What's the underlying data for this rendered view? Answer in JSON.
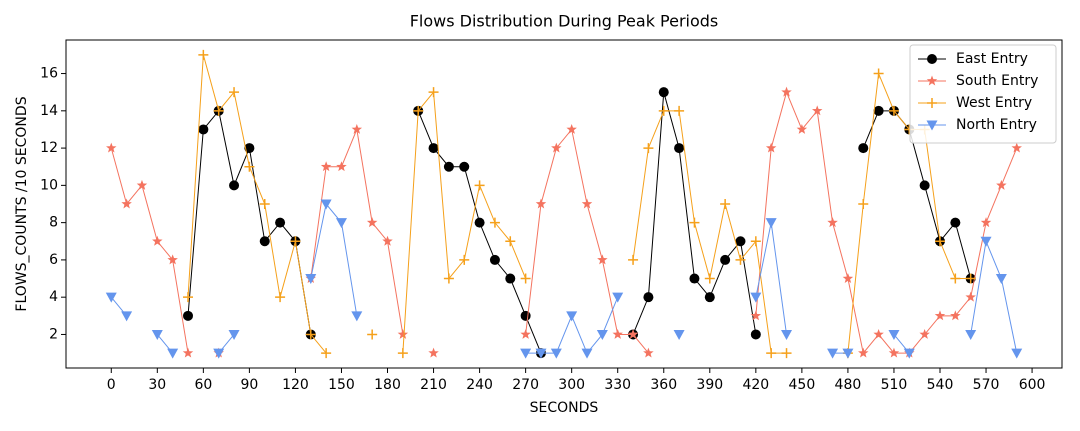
{
  "chart_data": {
    "type": "line",
    "title": "Flows Distribution During Peak Periods",
    "x_label": "SECONDS",
    "y_label": "FLOWS_COUNTS /10 SECONDS",
    "x": [
      0,
      10,
      20,
      30,
      40,
      50,
      60,
      70,
      80,
      90,
      100,
      110,
      120,
      130,
      140,
      150,
      160,
      170,
      180,
      190,
      200,
      210,
      220,
      230,
      240,
      250,
      260,
      270,
      280,
      290,
      300,
      310,
      320,
      330,
      340,
      350,
      360,
      370,
      380,
      390,
      400,
      410,
      420,
      430,
      440,
      450,
      460,
      470,
      480,
      490,
      500,
      510,
      520,
      530,
      540,
      550,
      560,
      570,
      580,
      590
    ],
    "series": [
      {
        "name": "East Entry",
        "color": "#000000",
        "marker": "circle",
        "values": [
          null,
          null,
          null,
          null,
          null,
          3,
          13,
          14,
          10,
          12,
          7,
          8,
          7,
          2,
          null,
          null,
          null,
          null,
          null,
          null,
          14,
          12,
          11,
          11,
          8,
          6,
          5,
          3,
          1,
          null,
          null,
          null,
          null,
          null,
          2,
          4,
          15,
          12,
          5,
          4,
          6,
          7,
          2,
          null,
          null,
          null,
          null,
          null,
          null,
          12,
          14,
          14,
          13,
          10,
          7,
          8,
          5,
          null,
          null,
          null
        ]
      },
      {
        "name": "South Entry",
        "color": "#f4735f",
        "marker": "star",
        "values": [
          12,
          9,
          10,
          7,
          6,
          1,
          null,
          1,
          null,
          null,
          null,
          null,
          null,
          5,
          11,
          11,
          13,
          8,
          7,
          2,
          null,
          1,
          null,
          null,
          null,
          null,
          null,
          2,
          9,
          12,
          13,
          9,
          6,
          2,
          2,
          1,
          null,
          null,
          null,
          null,
          null,
          null,
          3,
          12,
          15,
          13,
          14,
          8,
          5,
          1,
          2,
          1,
          1,
          2,
          3,
          3,
          4,
          8,
          10,
          12
        ]
      },
      {
        "name": "West Entry",
        "color": "#f5a01a",
        "marker": "plus",
        "values": [
          null,
          null,
          null,
          null,
          null,
          4,
          17,
          14,
          15,
          11,
          9,
          4,
          7,
          2,
          1,
          null,
          null,
          2,
          null,
          1,
          14,
          15,
          5,
          6,
          10,
          8,
          7,
          5,
          null,
          null,
          null,
          null,
          null,
          null,
          6,
          12,
          14,
          14,
          8,
          5,
          9,
          6,
          7,
          1,
          1,
          null,
          null,
          null,
          1,
          9,
          16,
          14,
          13,
          13,
          7,
          5,
          5,
          null,
          null,
          null
        ]
      },
      {
        "name": "North Entry",
        "color": "#6495ed",
        "marker": "triangle-down",
        "values": [
          4,
          3,
          null,
          2,
          1,
          null,
          null,
          1,
          2,
          null,
          null,
          null,
          null,
          5,
          9,
          8,
          3,
          null,
          null,
          null,
          null,
          null,
          null,
          null,
          null,
          null,
          null,
          1,
          1,
          1,
          3,
          1,
          2,
          4,
          null,
          null,
          null,
          2,
          null,
          null,
          null,
          null,
          4,
          8,
          2,
          null,
          null,
          1,
          1,
          null,
          null,
          2,
          1,
          null,
          null,
          null,
          2,
          7,
          5,
          1
        ]
      }
    ],
    "xlim": [
      -29.5,
      619.5
    ],
    "ylim": [
      0.2,
      17.8
    ],
    "xticks": [
      0,
      30,
      60,
      90,
      120,
      150,
      180,
      210,
      240,
      270,
      300,
      330,
      360,
      390,
      420,
      450,
      480,
      510,
      540,
      570,
      600
    ],
    "yticks": [
      2,
      4,
      6,
      8,
      10,
      12,
      14,
      16
    ],
    "grid": false,
    "legend": "upper right"
  }
}
